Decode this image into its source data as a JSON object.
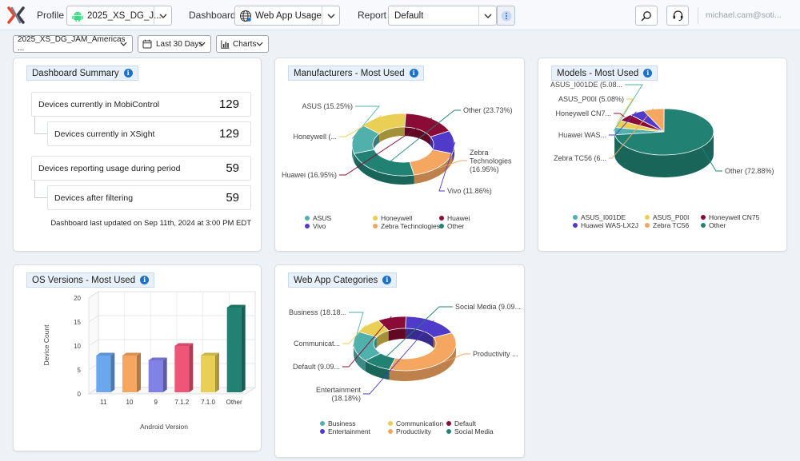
{
  "topbar": {
    "profile_label": "Profile",
    "profile_value": "2025_XS_DG_J...",
    "dashboard_label": "Dashboard",
    "dashboard_value": "Web App Usage",
    "report_label": "Report",
    "report_value": "Default",
    "user": "michael.cam@soti..."
  },
  "filters": {
    "group": "2025_XS_DG_JAM_Americas ...",
    "period": "Last 30 Days",
    "view": "Charts"
  },
  "summary": {
    "title": "Dashboard Summary",
    "rows": [
      {
        "label": "Devices currently in MobiControl",
        "value": "129"
      },
      {
        "label": "Devices currently in XSight",
        "value": "129"
      },
      {
        "label": "Devices reporting usage during period",
        "value": "59"
      },
      {
        "label": "Devices after filtering",
        "value": "59"
      }
    ],
    "updated": "Dashboard last updated on Sep 11th, 2024 at 3:00 PM EDT"
  },
  "colors": {
    "teal": "#50b0ab",
    "yellow": "#e9cf53",
    "maroon": "#8a0b35",
    "indigo": "#4f3ac9",
    "orange": "#f5a660",
    "darkteal": "#218273",
    "blue": "#6aa7ef",
    "lavender": "#8181e6",
    "pink": "#ee5579",
    "accent": "#1c72c9"
  },
  "chart_data": [
    {
      "type": "pie",
      "title": "Manufacturers - Most Used",
      "categories": [
        "ASUS",
        "Honeywell",
        "Huawei",
        "Vivo",
        "Zebra Technologies",
        "Other"
      ],
      "values": [
        15.25,
        15.25,
        16.95,
        11.86,
        16.95,
        23.73
      ],
      "labels": [
        "ASUS (15.25%)",
        "Honeywell (...",
        "Huawei (16.95%)",
        "Vivo (11.86%)",
        "Zebra Technologies (16.95%)",
        "Other (23.73%)"
      ],
      "label_lines": [
        [
          "ASUS (15.25%)"
        ],
        [
          "Honeywell (..."
        ],
        [
          "Huawei (16.95%)"
        ],
        [
          "Vivo (11.86%)"
        ],
        [
          "Zebra",
          "Technologies",
          "(16.95%)"
        ],
        [
          "Other (23.73%)"
        ]
      ],
      "legend": [
        "ASUS",
        "Honeywell",
        "Huawei",
        "Vivo",
        "Zebra Technologies",
        "Other"
      ]
    },
    {
      "type": "pie",
      "title": "Models - Most Used",
      "categories": [
        "ASUS_I001DE",
        "ASUS_P00I",
        "Honeywell CN75",
        "Huawei WAS-LX2J",
        "Zebra TC56",
        "Other"
      ],
      "values": [
        5.08,
        5.08,
        5.08,
        5.08,
        6.78,
        72.88
      ],
      "labels": [
        "ASUS_I001DE (5.08...",
        "ASUS_P00I (5.08%)",
        "Honeywell CN7...",
        "Huawei WAS...",
        "Zebra TC56 (6...",
        "Other (72.88%)"
      ],
      "label_lines": [
        [
          "ASUS_I001DE (5.08..."
        ],
        [
          "ASUS_P00I (5.08%)"
        ],
        [
          "Honeywell CN7..."
        ],
        [
          "Huawei WAS..."
        ],
        [
          "Zebra TC56 (6..."
        ],
        [
          "Other (72.88%)"
        ]
      ],
      "legend": [
        "ASUS_I001DE",
        "ASUS_P00I",
        "Honeywell CN75",
        "Huawei WAS-LX2J",
        "Zebra TC56",
        "Other"
      ]
    },
    {
      "type": "bar",
      "title": "OS Versions - Most Used",
      "categories": [
        "11",
        "10",
        "9",
        "7.1.2",
        "7.1.0",
        "Other"
      ],
      "values": [
        8,
        8,
        7,
        10,
        8,
        18
      ],
      "xlabel": "Android Version",
      "ylabel": "Device Count",
      "ylim": [
        0,
        20
      ],
      "yticks": [
        "0",
        "5",
        "10",
        "15",
        "20"
      ]
    },
    {
      "type": "pie",
      "title": "Web App Categories",
      "categories": [
        "Business",
        "Communication",
        "Default",
        "Entertainment",
        "Productivity",
        "Social Media"
      ],
      "values": [
        18.18,
        9.09,
        9.09,
        18.18,
        36.36,
        9.09
      ],
      "labels": [
        "Business (18.18...",
        "Communicat...",
        "Default (9.09...",
        "Entertainment (18.18%)",
        "Productivity ...",
        "Social Media (9.09..."
      ],
      "label_lines": [
        [
          "Business (18.18..."
        ],
        [
          "Communicat..."
        ],
        [
          "Default (9.09..."
        ],
        [
          "Entertainment",
          "(18.18%)"
        ],
        [
          "Productivity ..."
        ],
        [
          "Social Media (9.09..."
        ]
      ],
      "legend": [
        "Business",
        "Communication",
        "Default",
        "Entertainment",
        "Productivity",
        "Social Media"
      ]
    }
  ]
}
